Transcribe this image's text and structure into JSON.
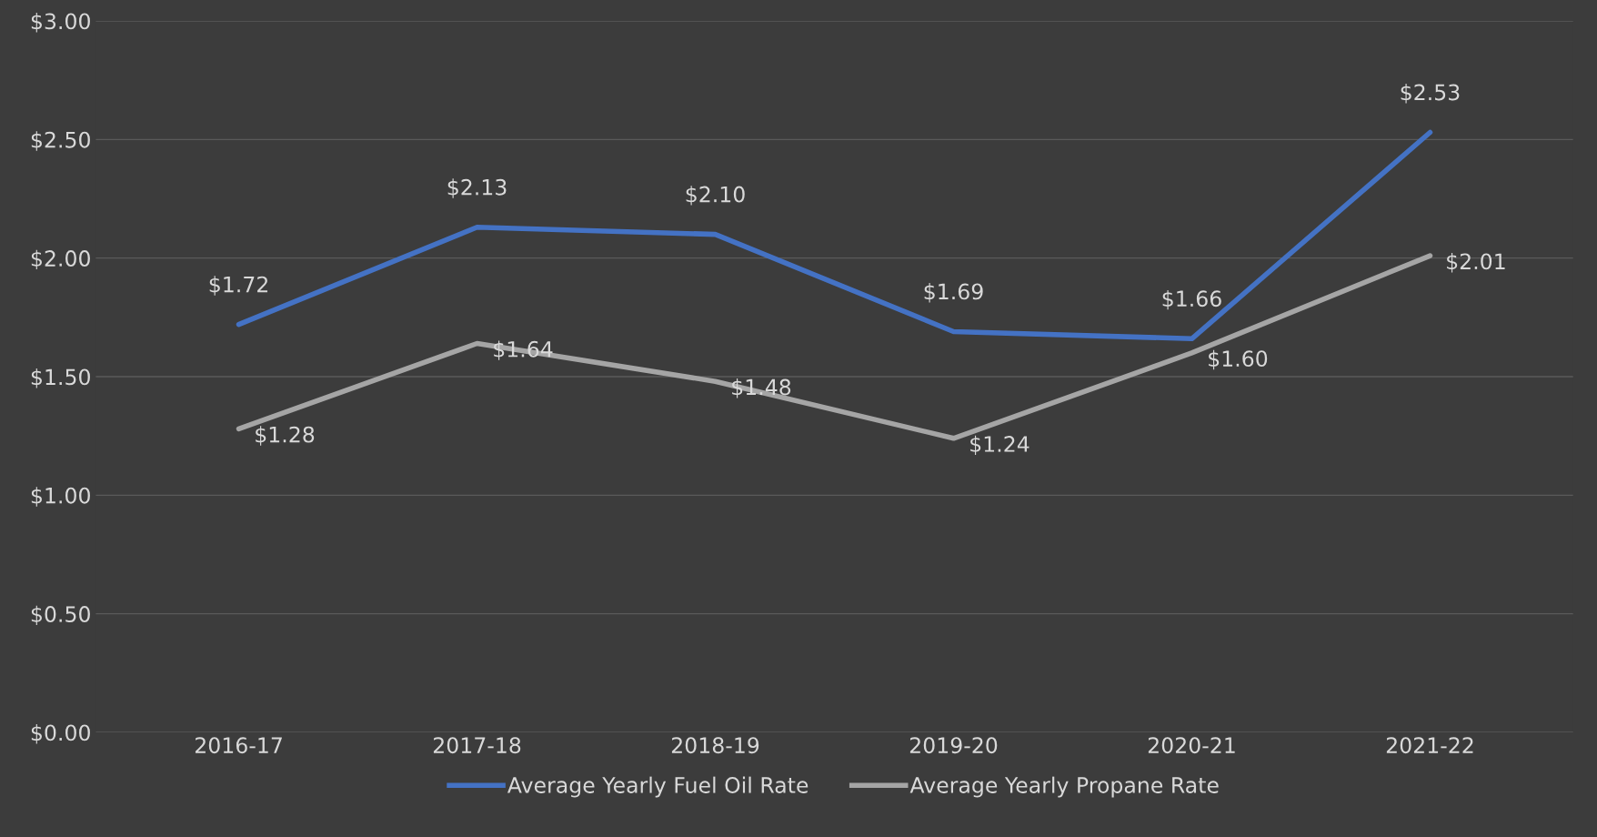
{
  "chart_data": {
    "type": "line",
    "categories": [
      "2016-17",
      "2017-18",
      "2018-19",
      "2019-20",
      "2020-21",
      "2021-22"
    ],
    "series": [
      {
        "name": "Average Yearly Fuel Oil Rate",
        "color": "#4472c4",
        "values": [
          1.72,
          2.13,
          2.1,
          1.69,
          1.66,
          2.53
        ],
        "value_labels": [
          "$1.72",
          "$2.13",
          "$2.10",
          "$1.69",
          "$1.66",
          "$2.53"
        ]
      },
      {
        "name": "Average Yearly Propane Rate",
        "color": "#a5a5a5",
        "values": [
          1.28,
          1.64,
          1.48,
          1.24,
          1.6,
          2.01
        ],
        "value_labels": [
          "$1.28",
          "$1.64",
          "$1.48",
          "$1.24",
          "$1.60",
          "$2.01"
        ]
      }
    ],
    "ylim": [
      0,
      3
    ],
    "yticks": [
      {
        "value": 0,
        "label": "$0.00"
      },
      {
        "value": 0.5,
        "label": "$0.50"
      },
      {
        "value": 1,
        "label": "$1.00"
      },
      {
        "value": 1.5,
        "label": "$1.50"
      },
      {
        "value": 2,
        "label": "$2.00"
      },
      {
        "value": 2.5,
        "label": "$2.50"
      },
      {
        "value": 3,
        "label": "$3.00"
      }
    ],
    "grid": "y",
    "legend": "bottom",
    "marker": "none",
    "line_style": "solid"
  }
}
